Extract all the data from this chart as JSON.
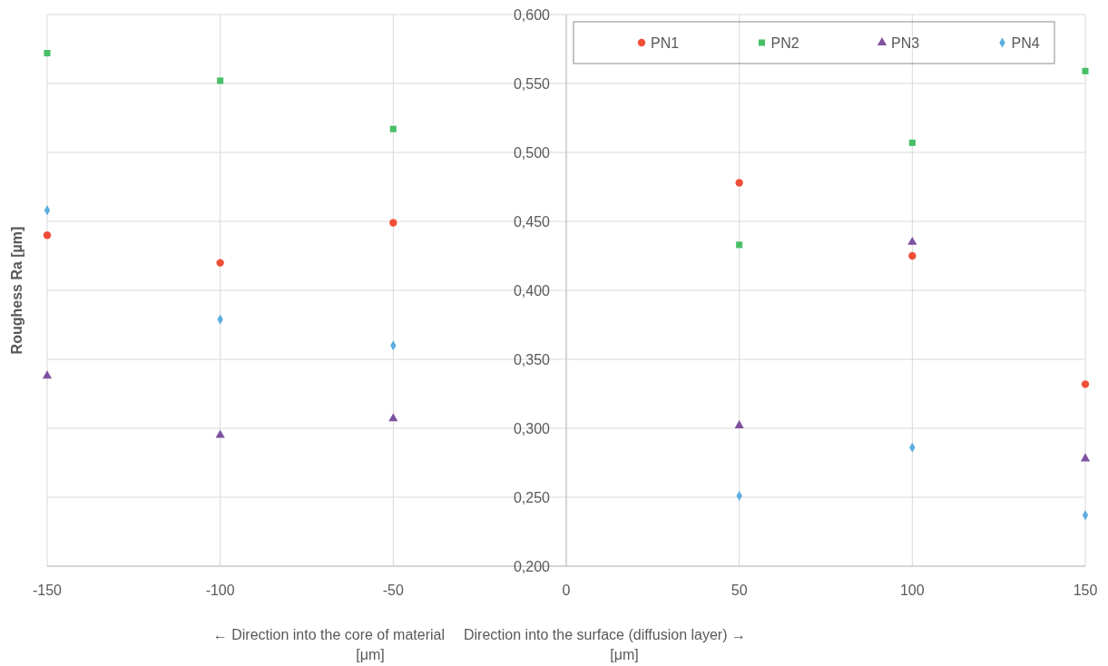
{
  "chart_data": {
    "type": "scatter",
    "ylabel": "Roughess Ra [µm]",
    "annotations": [
      "← Direction into the core of material\n[μm]",
      "Direction into the surface (diffusion layer) →\n[μm]"
    ],
    "x": [
      -150,
      -100,
      -50,
      50,
      100,
      150
    ],
    "series": [
      {
        "name": "PN1",
        "color": "#f04e37",
        "marker": "circle",
        "values": [
          0.44,
          0.42,
          0.449,
          0.478,
          0.425,
          0.332
        ]
      },
      {
        "name": "PN2",
        "color": "#48bf67",
        "marker": "square",
        "values": [
          0.572,
          0.552,
          0.517,
          0.433,
          0.507,
          0.559
        ]
      },
      {
        "name": "PN3",
        "color": "#7d51a0",
        "marker": "triangle",
        "values": [
          0.338,
          0.295,
          0.307,
          0.302,
          0.435,
          0.278
        ]
      },
      {
        "name": "PN4",
        "color": "#5aade0",
        "marker": "diamond",
        "values": [
          0.458,
          0.379,
          0.36,
          0.251,
          0.286,
          0.237
        ]
      }
    ],
    "xlim": [
      -150,
      150
    ],
    "xticks": [
      -150,
      -100,
      -50,
      0,
      50,
      100,
      150
    ],
    "ylim": [
      0.2,
      0.6
    ],
    "yticks": [
      {
        "value": 0.2,
        "label": "0,200"
      },
      {
        "value": 0.25,
        "label": "0,250"
      },
      {
        "value": 0.3,
        "label": "0,300"
      },
      {
        "value": 0.35,
        "label": "0,350"
      },
      {
        "value": 0.4,
        "label": "0,400"
      },
      {
        "value": 0.45,
        "label": "0,450"
      },
      {
        "value": 0.5,
        "label": "0,500"
      },
      {
        "value": 0.55,
        "label": "0,550"
      },
      {
        "value": 0.6,
        "label": "0,600"
      }
    ],
    "grid": true,
    "legend": "top right"
  }
}
